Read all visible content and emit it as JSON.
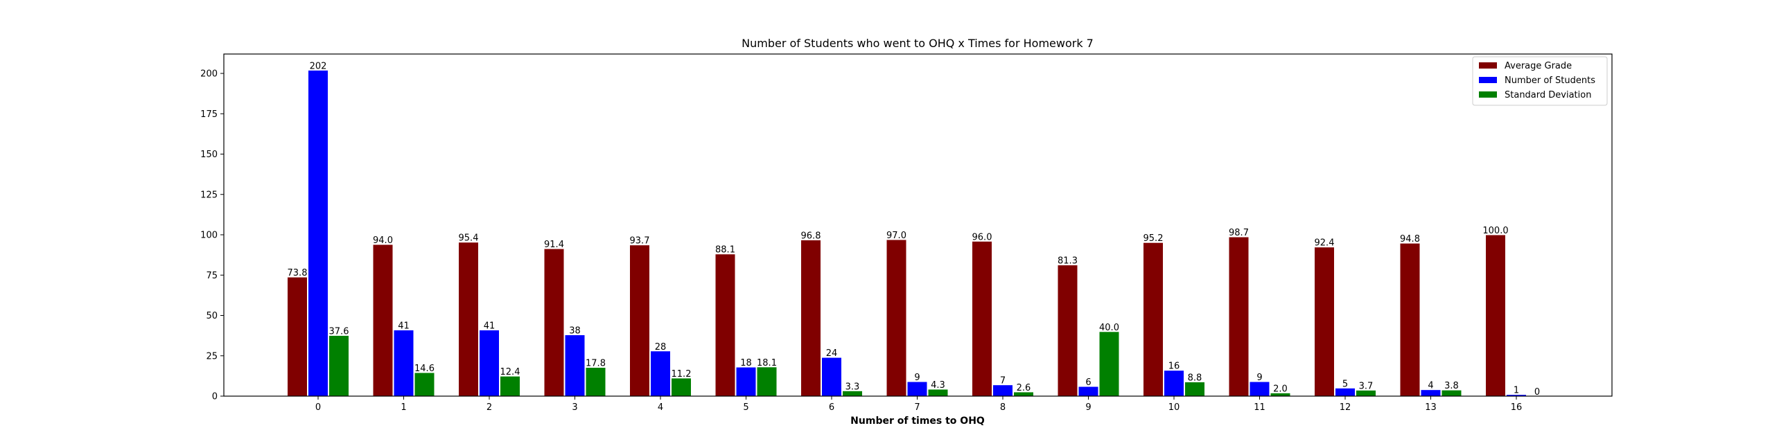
{
  "chart_data": {
    "type": "bar",
    "title": "Number of Students who went to OHQ x Times for Homework 7",
    "xlabel": "Number of times to OHQ",
    "ylabel": "",
    "categories": [
      "0",
      "1",
      "2",
      "3",
      "4",
      "5",
      "6",
      "7",
      "8",
      "9",
      "10",
      "11",
      "12",
      "13",
      "16"
    ],
    "ylim": [
      0,
      212
    ],
    "yticks": [
      0,
      25,
      50,
      75,
      100,
      125,
      150,
      175,
      200
    ],
    "grid": false,
    "legend_position": "top-right",
    "series": [
      {
        "name": "Average Grade",
        "color": "#800000",
        "values": [
          73.8,
          94.0,
          95.4,
          91.4,
          93.7,
          88.1,
          96.8,
          97.0,
          96.0,
          81.3,
          95.2,
          98.7,
          92.4,
          94.8,
          100.0
        ],
        "labels": [
          "73.8",
          "94.0",
          "95.4",
          "91.4",
          "93.7",
          "88.1",
          "96.8",
          "97.0",
          "96.0",
          "81.3",
          "95.2",
          "98.7",
          "92.4",
          "94.8",
          "100.0"
        ]
      },
      {
        "name": "Number of Students",
        "color": "#0000ff",
        "values": [
          202,
          41,
          41,
          38,
          28,
          18,
          24,
          9,
          7,
          6,
          16,
          9,
          5,
          4,
          1
        ],
        "labels": [
          "202",
          "41",
          "41",
          "38",
          "28",
          "18",
          "24",
          "9",
          "7",
          "6",
          "16",
          "9",
          "5",
          "4",
          "1"
        ]
      },
      {
        "name": "Standard Deviation",
        "color": "#008000",
        "values": [
          37.6,
          14.6,
          12.4,
          17.8,
          11.2,
          18.1,
          3.3,
          4.3,
          2.6,
          40.0,
          8.8,
          2.0,
          3.7,
          3.8,
          0
        ],
        "labels": [
          "37.6",
          "14.6",
          "12.4",
          "17.8",
          "11.2",
          "18.1",
          "3.3",
          "4.3",
          "2.6",
          "40.0",
          "8.8",
          "2.0",
          "3.7",
          "3.8",
          "0"
        ]
      }
    ]
  }
}
